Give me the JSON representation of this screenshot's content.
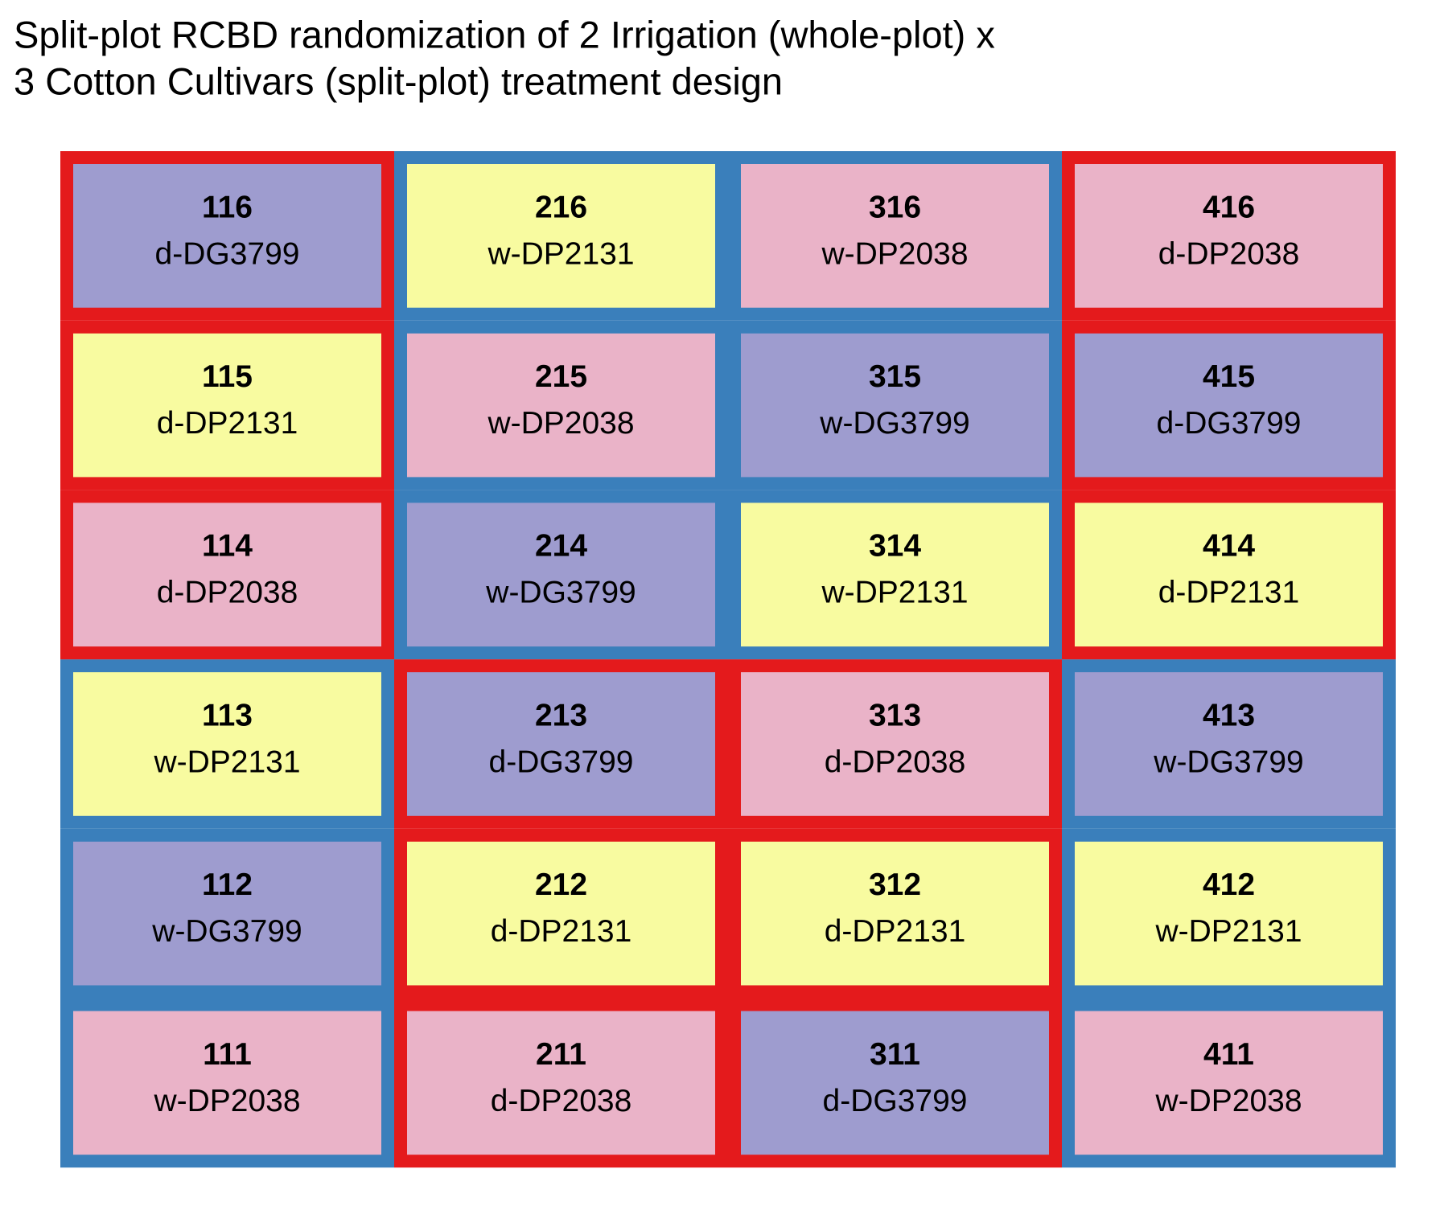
{
  "title": [
    "Split-plot RCBD randomization of 2 Irrigation (whole-plot) x",
    "3 Cotton Cultivars (split-plot) treatment design"
  ],
  "grid": {
    "rows": [
      [
        {
          "plot": "116",
          "treatment": "d-DG3799",
          "fill": "#9e9ccf",
          "border": "#e41a1c"
        },
        {
          "plot": "216",
          "treatment": "w-DP2131",
          "fill": "#f8fba0",
          "border": "#3a7fbb"
        },
        {
          "plot": "316",
          "treatment": "w-DP2038",
          "fill": "#eab3c8",
          "border": "#3a7fbb"
        },
        {
          "plot": "416",
          "treatment": "d-DP2038",
          "fill": "#eab3c8",
          "border": "#e41a1c"
        }
      ],
      [
        {
          "plot": "115",
          "treatment": "d-DP2131",
          "fill": "#f8fba0",
          "border": "#e41a1c"
        },
        {
          "plot": "215",
          "treatment": "w-DP2038",
          "fill": "#eab3c8",
          "border": "#3a7fbb"
        },
        {
          "plot": "315",
          "treatment": "w-DG3799",
          "fill": "#9e9ccf",
          "border": "#3a7fbb"
        },
        {
          "plot": "415",
          "treatment": "d-DG3799",
          "fill": "#9e9ccf",
          "border": "#e41a1c"
        }
      ],
      [
        {
          "plot": "114",
          "treatment": "d-DP2038",
          "fill": "#eab3c8",
          "border": "#e41a1c"
        },
        {
          "plot": "214",
          "treatment": "w-DG3799",
          "fill": "#9e9ccf",
          "border": "#3a7fbb"
        },
        {
          "plot": "314",
          "treatment": "w-DP2131",
          "fill": "#f8fba0",
          "border": "#3a7fbb"
        },
        {
          "plot": "414",
          "treatment": "d-DP2131",
          "fill": "#f8fba0",
          "border": "#e41a1c"
        }
      ],
      [
        {
          "plot": "113",
          "treatment": "w-DP2131",
          "fill": "#f8fba0",
          "border": "#3a7fbb"
        },
        {
          "plot": "213",
          "treatment": "d-DG3799",
          "fill": "#9e9ccf",
          "border": "#e41a1c"
        },
        {
          "plot": "313",
          "treatment": "d-DP2038",
          "fill": "#eab3c8",
          "border": "#e41a1c"
        },
        {
          "plot": "413",
          "treatment": "w-DG3799",
          "fill": "#9e9ccf",
          "border": "#3a7fbb"
        }
      ],
      [
        {
          "plot": "112",
          "treatment": "w-DG3799",
          "fill": "#9e9ccf",
          "border": "#3a7fbb"
        },
        {
          "plot": "212",
          "treatment": "d-DP2131",
          "fill": "#f8fba0",
          "border": "#e41a1c"
        },
        {
          "plot": "312",
          "treatment": "d-DP2131",
          "fill": "#f8fba0",
          "border": "#e41a1c"
        },
        {
          "plot": "412",
          "treatment": "w-DP2131",
          "fill": "#f8fba0",
          "border": "#3a7fbb"
        }
      ],
      [
        {
          "plot": "111",
          "treatment": "w-DP2038",
          "fill": "#eab3c8",
          "border": "#3a7fbb"
        },
        {
          "plot": "211",
          "treatment": "d-DP2038",
          "fill": "#eab3c8",
          "border": "#e41a1c"
        },
        {
          "plot": "311",
          "treatment": "d-DG3799",
          "fill": "#9e9ccf",
          "border": "#e41a1c"
        },
        {
          "plot": "411",
          "treatment": "w-DP2038",
          "fill": "#eab3c8",
          "border": "#3a7fbb"
        }
      ]
    ]
  }
}
